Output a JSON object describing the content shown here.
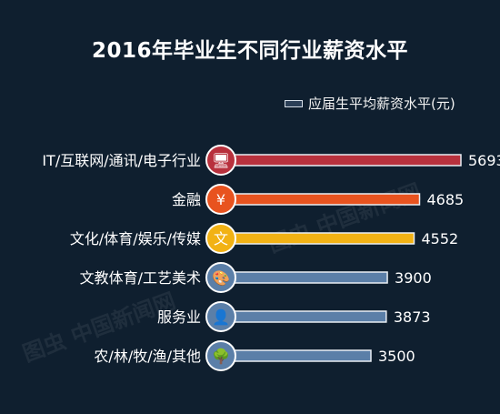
{
  "title": "2016年毕业生不同行业薪资水平",
  "legend_label": "应届生平均薪资水平(元)",
  "watermark": "图虫 中国新闻网",
  "chart_data": {
    "type": "bar",
    "orientation": "horizontal",
    "title": "2016年毕业生不同行业薪资水平",
    "legend": [
      {
        "name": "应届生平均薪资水平(元)"
      }
    ],
    "categories": [
      "IT/互联网/通讯/电子行业",
      "金融",
      "文化/体育/娱乐/传媒",
      "文教体育/工艺美术",
      "服务业",
      "农/林/牧/渔/其他"
    ],
    "values": [
      5693,
      4685,
      4552,
      3900,
      3873,
      3500
    ],
    "value_labels": [
      "5693",
      "4685",
      "4552",
      "3900",
      "3873",
      "3500"
    ],
    "icons": [
      {
        "name": "monitor-icon",
        "glyph": "🖥"
      },
      {
        "name": "yen-icon",
        "glyph": "¥"
      },
      {
        "name": "text-icon",
        "glyph": "文"
      },
      {
        "name": "palette-icon",
        "glyph": "🎨"
      },
      {
        "name": "person-icon",
        "glyph": "👤"
      },
      {
        "name": "tree-icon",
        "glyph": "🌳"
      }
    ],
    "bar_colors": [
      "#b8313d",
      "#e8531f",
      "#f2b214",
      "#5b7fa8",
      "#5b7fa8",
      "#5b7fa8"
    ],
    "icon_colors": [
      "#b8313d",
      "#e8531f",
      "#f2b214",
      "#5b7fa8",
      "#5b7fa8",
      "#5b7fa8"
    ],
    "xlim": [
      0,
      5693
    ],
    "grid": false
  }
}
